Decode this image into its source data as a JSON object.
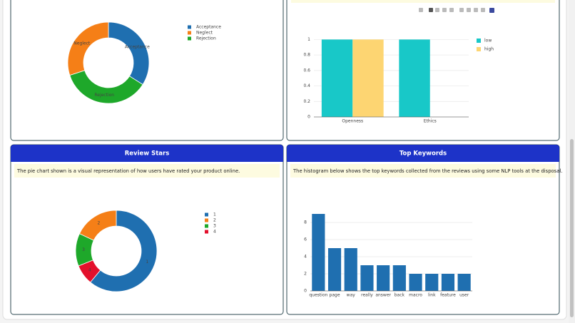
{
  "panels": [
    {
      "title": "Review Stars",
      "description": "The pie chart shown is a visual representation of how users have rated your product online."
    },
    {
      "title": "Top Keywords",
      "description": "The histogram below shows the top keywords collected from the reviews using some NLP tools at the disposal."
    }
  ],
  "chart_data": [
    {
      "type": "pie",
      "categories": [
        "Acceptance",
        "Neglect",
        "Rejection"
      ],
      "values": [
        34,
        30,
        36
      ],
      "colors": [
        "#1f6fb0",
        "#f57f17",
        "#1ea82a"
      ]
    },
    {
      "type": "bar",
      "categories": [
        "Openness",
        "Ethics"
      ],
      "series": [
        {
          "name": "low",
          "color": "#18c8c8",
          "values": [
            1,
            1
          ]
        },
        {
          "name": "high",
          "color": "#fdd572",
          "values": [
            1,
            null
          ]
        }
      ],
      "ylim": [
        0,
        1.05
      ],
      "yticks": [
        0,
        0.2,
        0.4,
        0.6,
        0.8,
        1
      ],
      "grid": true
    },
    {
      "type": "pie",
      "categories": [
        "1",
        "2",
        "3",
        "4"
      ],
      "values": [
        61,
        18,
        13,
        8
      ],
      "colors": [
        "#1f6fb0",
        "#f57f17",
        "#1ea82a",
        "#e3102c"
      ]
    },
    {
      "type": "bar",
      "categories": [
        "question",
        "page",
        "way",
        "really",
        "answer",
        "back",
        "macro",
        "link",
        "feature",
        "user"
      ],
      "values": [
        9,
        5,
        5,
        3,
        3,
        3,
        2,
        2,
        2,
        2
      ],
      "color": "#1f6fb0",
      "ylim": [
        0,
        9.5
      ],
      "yticks": [
        0,
        2,
        4,
        6,
        8
      ],
      "grid": true
    }
  ]
}
